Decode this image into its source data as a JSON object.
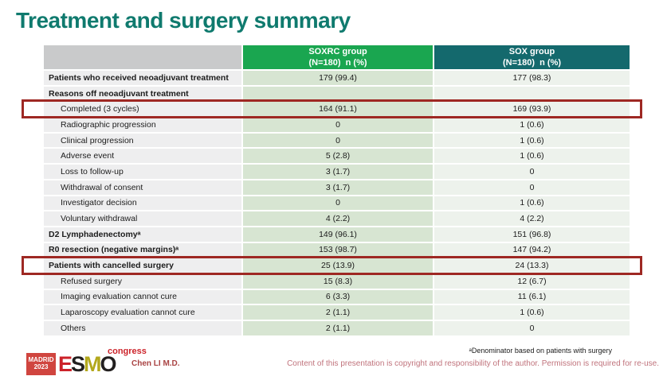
{
  "slide": {
    "title": "Treatment and surgery summary",
    "colors": {
      "title": "#0f7a6e",
      "soxrc_header": "#1aa650",
      "sox_header": "#14696d",
      "soxrc_cell": "#d7e5d2",
      "sox_cell": "#edf2ec",
      "label_cell": "#eeeeef",
      "highlight_border": "#9e2823",
      "copyright_text": "#c0737c"
    }
  },
  "table": {
    "columns": [
      {
        "label": "",
        "sublabel": ""
      },
      {
        "label": "SOXRC group",
        "sublabel": "(N=180)  n (%)"
      },
      {
        "label": "SOX group",
        "sublabel": "(N=180)  n (%)"
      }
    ],
    "rows": [
      {
        "label": "Patients who received neoadjuvant treatment",
        "bold": true,
        "indent": false,
        "soxrc": "179 (99.4)",
        "sox": "177 (98.3)",
        "highlight": false
      },
      {
        "label": "Reasons off neoadjuvant treatment",
        "bold": true,
        "indent": false,
        "soxrc": "",
        "sox": "",
        "highlight": false
      },
      {
        "label": "Completed (3 cycles)",
        "bold": false,
        "indent": true,
        "soxrc": "164 (91.1)",
        "sox": "169 (93.9)",
        "highlight": true
      },
      {
        "label": "Radiographic progression",
        "bold": false,
        "indent": true,
        "soxrc": "0",
        "sox": "1 (0.6)",
        "highlight": false
      },
      {
        "label": "Clinical progression",
        "bold": false,
        "indent": true,
        "soxrc": "0",
        "sox": "1 (0.6)",
        "highlight": false
      },
      {
        "label": "Adverse event",
        "bold": false,
        "indent": true,
        "soxrc": "5 (2.8)",
        "sox": "1 (0.6)",
        "highlight": false
      },
      {
        "label": "Loss to follow-up",
        "bold": false,
        "indent": true,
        "soxrc": "3 (1.7)",
        "sox": "0",
        "highlight": false
      },
      {
        "label": "Withdrawal of consent",
        "bold": false,
        "indent": true,
        "soxrc": "3 (1.7)",
        "sox": "0",
        "highlight": false
      },
      {
        "label": "Investigator decision",
        "bold": false,
        "indent": true,
        "soxrc": "0",
        "sox": "1 (0.6)",
        "highlight": false
      },
      {
        "label": "Voluntary withdrawal",
        "bold": false,
        "indent": true,
        "soxrc": "4 (2.2)",
        "sox": "4 (2.2)",
        "highlight": false
      },
      {
        "label": "D2 Lymphadenectomyᵃ",
        "bold": true,
        "indent": false,
        "soxrc": "149 (96.1)",
        "sox": "151 (96.8)",
        "highlight": false
      },
      {
        "label": "R0 resection (negative margins)ᵃ",
        "bold": true,
        "indent": false,
        "soxrc": "153 (98.7)",
        "sox": "147 (94.2)",
        "highlight": false
      },
      {
        "label": "Patients with cancelled surgery",
        "bold": true,
        "indent": false,
        "soxrc": "25 (13.9)",
        "sox": "24 (13.3)",
        "highlight": true
      },
      {
        "label": "Refused surgery",
        "bold": false,
        "indent": true,
        "soxrc": "15 (8.3)",
        "sox": "12 (6.7)",
        "highlight": false
      },
      {
        "label": "Imaging evaluation cannot cure",
        "bold": false,
        "indent": true,
        "soxrc": "6 (3.3)",
        "sox": "11 (6.1)",
        "highlight": false
      },
      {
        "label": "Laparoscopy evaluation cannot cure",
        "bold": false,
        "indent": true,
        "soxrc": "2 (1.1)",
        "sox": "1 (0.6)",
        "highlight": false
      },
      {
        "label": "Others",
        "bold": false,
        "indent": true,
        "soxrc": "2 (1.1)",
        "sox": "0",
        "highlight": false
      }
    ]
  },
  "footer": {
    "logo": {
      "badge_line1": "MADRID",
      "badge_line2": "2023",
      "letters": [
        {
          "ch": "E",
          "color": "#cc2229"
        },
        {
          "ch": "S",
          "color": "#221f1f"
        },
        {
          "ch": "M",
          "color": "#b3a81c"
        },
        {
          "ch": "O",
          "color": "#221f1f"
        }
      ],
      "congress": "congress"
    },
    "author": "Chen LI M.D.",
    "footnote": "ᵃDenominator based on patients with surgery",
    "copyright": "Content of this presentation is copyright and responsibility of the author. Permission is required for re-use."
  }
}
